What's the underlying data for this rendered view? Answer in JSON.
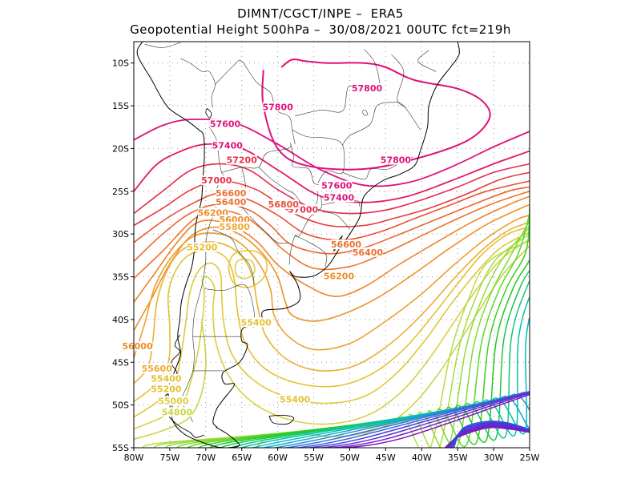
{
  "title_line1": "DIMNT/CGCT/INPE –  ERA5",
  "title_line2": "Geopotential Height 500hPa –  30/08/2021 00UTC fct=219h",
  "lat_ticks": [
    "10S",
    "15S",
    "20S",
    "25S",
    "30S",
    "35S",
    "40S",
    "45S",
    "50S",
    "55S"
  ],
  "lon_ticks": [
    "80W",
    "75W",
    "70W",
    "65W",
    "60W",
    "55W",
    "50W",
    "45W",
    "40W",
    "35W",
    "30W",
    "25W"
  ],
  "contour_labels": [
    {
      "text": "57800",
      "color": "#e0107a",
      "lon": -47.6,
      "lat": -13.2
    },
    {
      "text": "57800",
      "color": "#e0107a",
      "lon": -60.0,
      "lat": -15.4
    },
    {
      "text": "57800",
      "color": "#e0107a",
      "lon": -43.6,
      "lat": -21.6
    },
    {
      "text": "57600",
      "color": "#e0107a",
      "lon": -67.3,
      "lat": -17.4
    },
    {
      "text": "57600",
      "color": "#e0107a",
      "lon": -51.8,
      "lat": -24.6
    },
    {
      "text": "57400",
      "color": "#e0107a",
      "lon": -67.0,
      "lat": -19.9
    },
    {
      "text": "57400",
      "color": "#e0107a",
      "lon": -51.5,
      "lat": -26.0
    },
    {
      "text": "57200",
      "color": "#e8304a",
      "lon": -65.0,
      "lat": -21.6
    },
    {
      "text": "57000",
      "color": "#e8304a",
      "lon": -68.5,
      "lat": -24.0
    },
    {
      "text": "57000",
      "color": "#e8304a",
      "lon": -56.5,
      "lat": -27.4
    },
    {
      "text": "56800",
      "color": "#e8503a",
      "lon": -59.2,
      "lat": -26.8
    },
    {
      "text": "56600",
      "color": "#ec7030",
      "lon": -66.5,
      "lat": -25.5
    },
    {
      "text": "56600",
      "color": "#ec7030",
      "lon": -50.5,
      "lat": -31.5
    },
    {
      "text": "56400",
      "color": "#ec7030",
      "lon": -66.5,
      "lat": -26.5
    },
    {
      "text": "56400",
      "color": "#ec7030",
      "lon": -47.5,
      "lat": -32.4
    },
    {
      "text": "56200",
      "color": "#ee8c28",
      "lon": -69.0,
      "lat": -27.8
    },
    {
      "text": "56200",
      "color": "#ee8c28",
      "lon": -51.5,
      "lat": -35.2
    },
    {
      "text": "56000",
      "color": "#ee8c28",
      "lon": -66.0,
      "lat": -28.6
    },
    {
      "text": "55800",
      "color": "#eeaa30",
      "lon": -66.0,
      "lat": -29.4
    },
    {
      "text": "55200",
      "color": "#e6c030",
      "lon": -70.5,
      "lat": -31.8
    },
    {
      "text": "55400",
      "color": "#e6c030",
      "lon": -63.0,
      "lat": -40.6
    },
    {
      "text": "56000",
      "color": "#ee8c28",
      "lon": -79.5,
      "lat": -43.4
    },
    {
      "text": "55600",
      "color": "#eeaa30",
      "lon": -76.8,
      "lat": -46.0
    },
    {
      "text": "55400",
      "color": "#e6c030",
      "lon": -75.5,
      "lat": -47.2
    },
    {
      "text": "55200",
      "color": "#e6c030",
      "lon": -75.5,
      "lat": -48.4
    },
    {
      "text": "55000",
      "color": "#dcd040",
      "lon": -74.5,
      "lat": -49.8
    },
    {
      "text": "54800",
      "color": "#c8d840",
      "lon": -74.0,
      "lat": -51.1
    },
    {
      "text": "55400",
      "color": "#e6c030",
      "lon": -57.6,
      "lat": -49.6
    }
  ],
  "colors": {
    "high": "#e0107a",
    "mid": "#ee8c28",
    "yellow": "#e6d030",
    "green": "#20c820",
    "teal": "#00c0c0",
    "blue": "#3040e0",
    "violet": "#8000c0"
  }
}
